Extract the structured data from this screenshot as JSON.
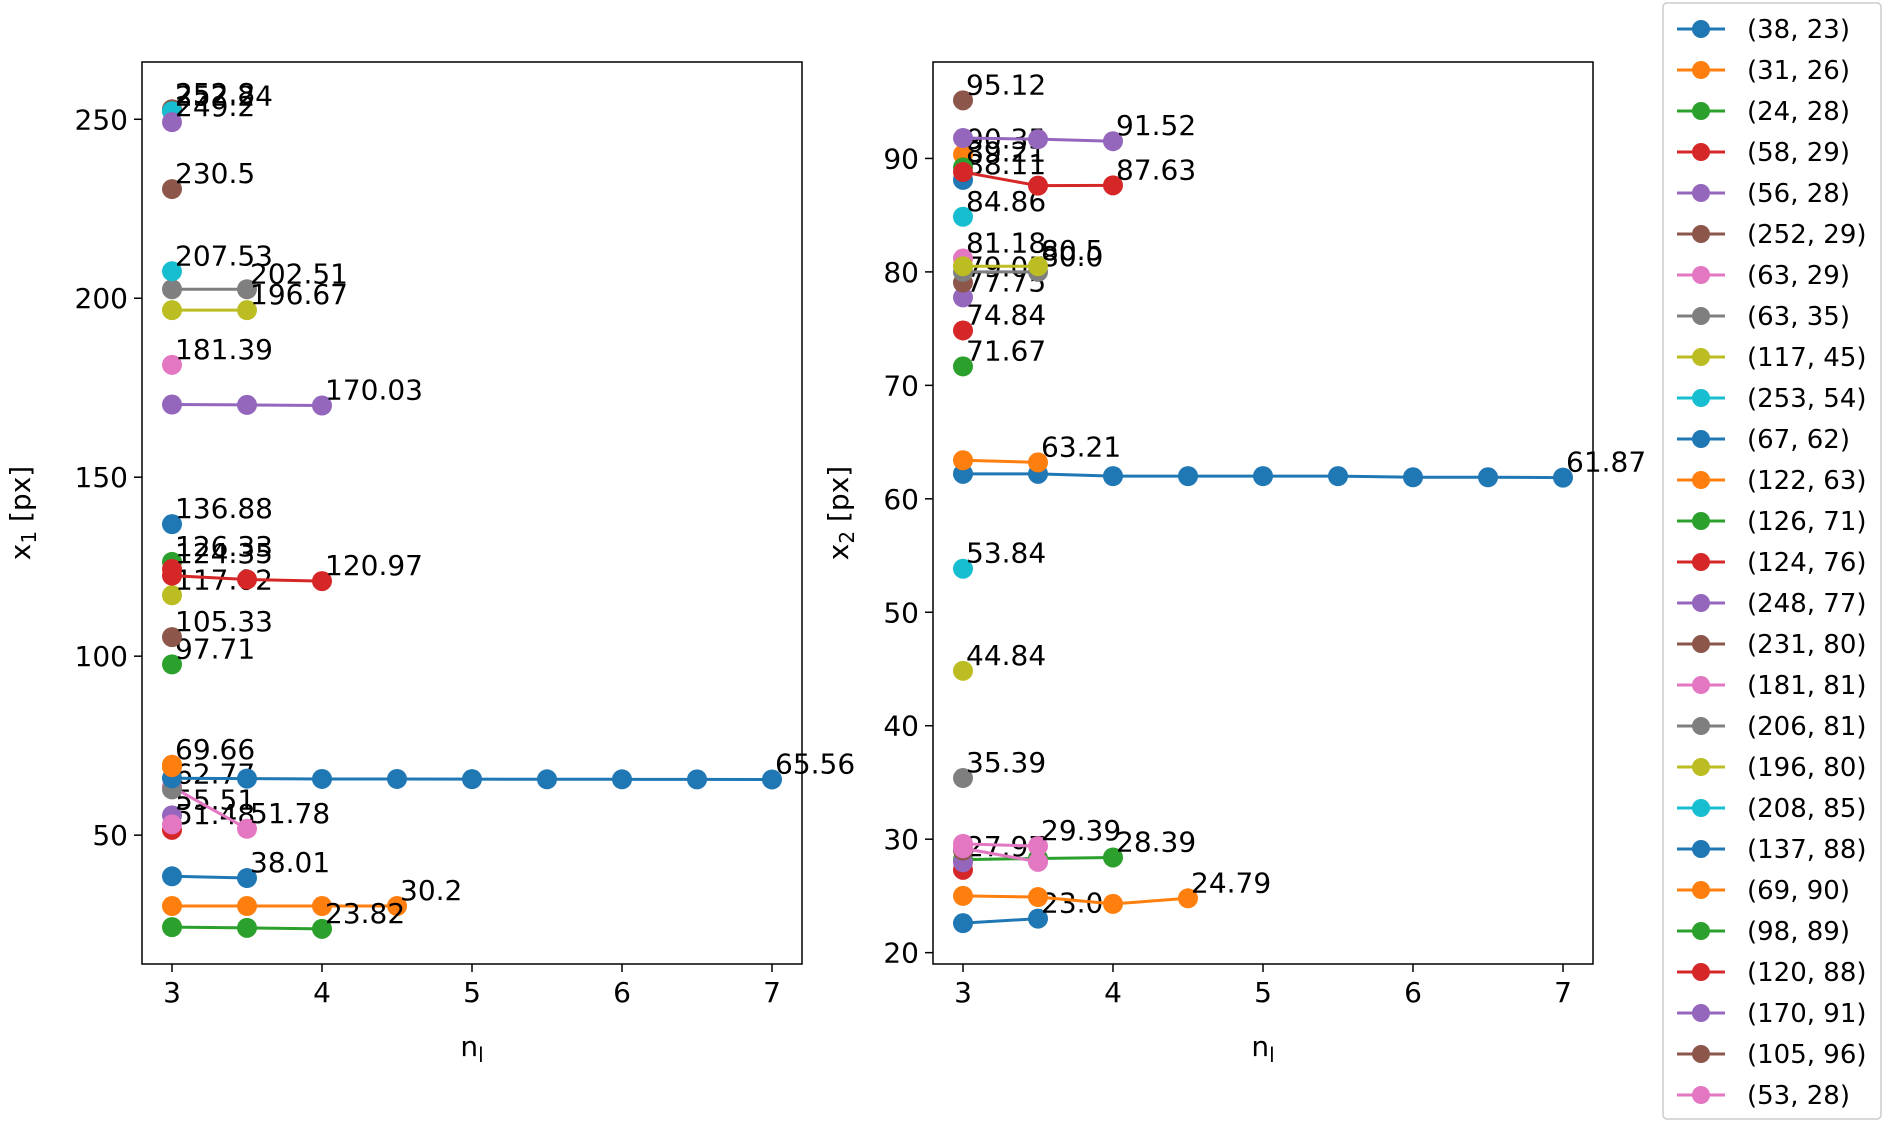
{
  "chart_data": [
    {
      "type": "line",
      "xlabel": "n",
      "xlabel_sub": "l",
      "ylabel": "x",
      "ylabel_sub": "1",
      "ylabel_unit": " [px]",
      "xlim": [
        2.8,
        7.2
      ],
      "ylim": [
        14.0,
        266.0
      ],
      "xticks": [
        3,
        4,
        5,
        6,
        7
      ],
      "yticks": [
        50,
        100,
        150,
        200,
        250
      ],
      "series": [
        {
          "name": "(38, 23)",
          "x": [
            3.0,
            3.5
          ],
          "y": [
            38.5,
            38.01
          ],
          "end_label": "38.01"
        },
        {
          "name": "(31, 26)",
          "x": [
            3.0,
            3.5,
            4.0,
            4.5
          ],
          "y": [
            30.2,
            30.2,
            30.2,
            30.2
          ],
          "end_label": "30.2"
        },
        {
          "name": "(24, 28)",
          "x": [
            3.0,
            3.5,
            4.0
          ],
          "y": [
            24.3,
            24.1,
            23.82
          ],
          "end_label": "23.82"
        },
        {
          "name": "(58, 29)",
          "x": [
            3.0
          ],
          "y": [
            51.48
          ],
          "end_label": "51.48"
        },
        {
          "name": "(56, 28)",
          "x": [
            3.0
          ],
          "y": [
            55.51
          ],
          "end_label": "55.51"
        },
        {
          "name": "(252, 29)",
          "x": [
            3.0
          ],
          "y": [
            252.8
          ],
          "end_label": "252.8"
        },
        {
          "name": "(63, 29)",
          "x": [
            3.0,
            3.5
          ],
          "y": [
            63.5,
            51.78
          ],
          "end_label": "51.78"
        },
        {
          "name": "(63, 35)",
          "x": [
            3.0
          ],
          "y": [
            62.77
          ],
          "end_label": "62.77"
        },
        {
          "name": "(117, 45)",
          "x": [
            3.0
          ],
          "y": [
            117.02
          ],
          "end_label": "117.02"
        },
        {
          "name": "(253, 54)",
          "x": [
            3.0
          ],
          "y": [
            252.24
          ],
          "end_label": "252.24"
        },
        {
          "name": "(67, 62)",
          "x": [
            3.0,
            3.5,
            4.0,
            4.5,
            5.0,
            5.5,
            6.0,
            6.5,
            7.0
          ],
          "y": [
            65.9,
            65.8,
            65.7,
            65.7,
            65.65,
            65.6,
            65.6,
            65.58,
            65.56
          ],
          "end_label": "65.56"
        },
        {
          "name": "(122, 63)",
          "x": [
            3.0
          ],
          "y": [
            69.66
          ],
          "end_label": "69.66"
        },
        {
          "name": "(126, 71)",
          "x": [
            3.0
          ],
          "y": [
            126.33
          ],
          "end_label": "126.33"
        },
        {
          "name": "(124, 76)",
          "x": [
            3.0,
            3.5,
            4.0
          ],
          "y": [
            122.5,
            121.43,
            120.97
          ],
          "end_label": "120.97"
        },
        {
          "name": "(248, 77)",
          "x": [
            3.0
          ],
          "y": [
            249.2
          ],
          "end_label": "249.2"
        },
        {
          "name": "(231, 80)",
          "x": [
            3.0
          ],
          "y": [
            230.5
          ],
          "end_label": "230.5"
        },
        {
          "name": "(181, 81)",
          "x": [
            3.0
          ],
          "y": [
            181.39
          ],
          "end_label": "181.39"
        },
        {
          "name": "(206, 81)",
          "x": [
            3.0,
            3.5
          ],
          "y": [
            202.51,
            202.51
          ],
          "end_label": "202.51"
        },
        {
          "name": "(196, 80)",
          "x": [
            3.0,
            3.5
          ],
          "y": [
            196.67,
            196.67
          ],
          "end_label": "196.67"
        },
        {
          "name": "(208, 85)",
          "x": [
            3.0
          ],
          "y": [
            207.53
          ],
          "end_label": "207.53"
        },
        {
          "name": "(137, 88)",
          "x": [
            3.0
          ],
          "y": [
            136.88
          ],
          "end_label": "136.88"
        },
        {
          "name": "(69, 90)",
          "x": [
            3.0
          ],
          "y": [
            69.0
          ],
          "end_label": ""
        },
        {
          "name": "(98, 89)",
          "x": [
            3.0
          ],
          "y": [
            97.71
          ],
          "end_label": "97.71"
        },
        {
          "name": "(120, 88)",
          "x": [
            3.0
          ],
          "y": [
            124.35
          ],
          "end_label": "124.35"
        },
        {
          "name": "(170, 91)",
          "x": [
            3.0,
            3.5,
            4.0
          ],
          "y": [
            170.3,
            170.2,
            170.03
          ],
          "end_label": "170.03"
        },
        {
          "name": "(105, 96)",
          "x": [
            3.0
          ],
          "y": [
            105.33
          ],
          "end_label": "105.33"
        },
        {
          "name": "(53, 28)",
          "x": [
            3.0
          ],
          "y": [
            53.0
          ],
          "end_label": ""
        }
      ]
    },
    {
      "type": "line",
      "xlabel": "n",
      "xlabel_sub": "l",
      "ylabel": "x",
      "ylabel_sub": "2",
      "ylabel_unit": " [px]",
      "xlim": [
        2.8,
        7.2
      ],
      "ylim": [
        19.0,
        98.5
      ],
      "xticks": [
        3,
        4,
        5,
        6,
        7
      ],
      "yticks": [
        20,
        30,
        40,
        50,
        60,
        70,
        80,
        90
      ],
      "series": [
        {
          "name": "(38, 23)",
          "x": [
            3.0,
            3.5
          ],
          "y": [
            22.6,
            23.0
          ],
          "end_label": "23.0"
        },
        {
          "name": "(31, 26)",
          "x": [
            3.0,
            3.5,
            4.0,
            4.5
          ],
          "y": [
            25.0,
            24.9,
            24.3,
            24.79
          ],
          "end_label": "24.79"
        },
        {
          "name": "(24, 28)",
          "x": [
            3.0,
            3.5,
            4.0
          ],
          "y": [
            28.2,
            28.3,
            28.39
          ],
          "end_label": "28.39"
        },
        {
          "name": "(58, 29)",
          "x": [
            3.0
          ],
          "y": [
            27.3
          ],
          "end_label": ""
        },
        {
          "name": "(56, 28)",
          "x": [
            3.0
          ],
          "y": [
            27.97
          ],
          "end_label": "27.97"
        },
        {
          "name": "(252, 29)",
          "x": [
            3.0
          ],
          "y": [
            29.0
          ],
          "end_label": ""
        },
        {
          "name": "(63, 29)",
          "x": [
            3.0,
            3.5
          ],
          "y": [
            29.59,
            29.39
          ],
          "end_label": "29.39"
        },
        {
          "name": "(63, 35)",
          "x": [
            3.0
          ],
          "y": [
            35.39
          ],
          "end_label": "35.39"
        },
        {
          "name": "(117, 45)",
          "x": [
            3.0
          ],
          "y": [
            44.84
          ],
          "end_label": "44.84"
        },
        {
          "name": "(253, 54)",
          "x": [
            3.0
          ],
          "y": [
            53.84
          ],
          "end_label": "53.84"
        },
        {
          "name": "(67, 62)",
          "x": [
            3.0,
            3.5,
            4.0,
            4.5,
            5.0,
            5.5,
            6.0,
            6.5,
            7.0
          ],
          "y": [
            62.2,
            62.2,
            62.0,
            62.0,
            62.0,
            62.0,
            61.9,
            61.9,
            61.87
          ],
          "end_label": "61.87"
        },
        {
          "name": "(122, 63)",
          "x": [
            3.0,
            3.5
          ],
          "y": [
            63.4,
            63.21
          ],
          "end_label": "63.21"
        },
        {
          "name": "(126, 71)",
          "x": [
            3.0
          ],
          "y": [
            71.67
          ],
          "end_label": "71.67"
        },
        {
          "name": "(124, 76)",
          "x": [
            3.0
          ],
          "y": [
            74.84
          ],
          "end_label": "74.84"
        },
        {
          "name": "(248, 77)",
          "x": [
            3.0
          ],
          "y": [
            77.75
          ],
          "end_label": "77.75"
        },
        {
          "name": "(231, 80)",
          "x": [
            3.0
          ],
          "y": [
            79.05
          ],
          "end_label": "79.05"
        },
        {
          "name": "(181, 81)",
          "x": [
            3.0
          ],
          "y": [
            81.18
          ],
          "end_label": "81.18"
        },
        {
          "name": "(206, 81)",
          "x": [
            3.0,
            3.5
          ],
          "y": [
            80.0,
            80.0
          ],
          "end_label": "80.0"
        },
        {
          "name": "(196, 80)",
          "x": [
            3.0,
            3.5
          ],
          "y": [
            80.5,
            80.5
          ],
          "end_label": "80.5"
        },
        {
          "name": "(208, 85)",
          "x": [
            3.0
          ],
          "y": [
            84.86
          ],
          "end_label": "84.86"
        },
        {
          "name": "(137, 88)",
          "x": [
            3.0
          ],
          "y": [
            88.11
          ],
          "end_label": "88.11"
        },
        {
          "name": "(69, 90)",
          "x": [
            3.0
          ],
          "y": [
            90.35
          ],
          "end_label": "90.35"
        },
        {
          "name": "(98, 89)",
          "x": [
            3.0
          ],
          "y": [
            89.21
          ],
          "end_label": "89.21"
        },
        {
          "name": "(120, 88)",
          "x": [
            3.0,
            3.5,
            4.0
          ],
          "y": [
            88.8,
            87.6,
            87.63
          ],
          "end_label": "87.63"
        },
        {
          "name": "(170, 91)",
          "x": [
            3.0,
            3.5,
            4.0
          ],
          "y": [
            91.8,
            91.7,
            91.52
          ],
          "end_label": "91.52"
        },
        {
          "name": "(105, 96)",
          "x": [
            3.0
          ],
          "y": [
            95.12
          ],
          "end_label": "95.12"
        },
        {
          "name": "(53, 28)",
          "x": [
            3.0,
            3.5
          ],
          "y": [
            29.2,
            28.0
          ],
          "end_label": ""
        }
      ]
    }
  ],
  "legend": {
    "location": "right",
    "entries": [
      "(38, 23)",
      "(31, 26)",
      "(24, 28)",
      "(58, 29)",
      "(56, 28)",
      "(252, 29)",
      "(63, 29)",
      "(63, 35)",
      "(117, 45)",
      "(253, 54)",
      "(67, 62)",
      "(122, 63)",
      "(126, 71)",
      "(124, 76)",
      "(248, 77)",
      "(231, 80)",
      "(181, 81)",
      "(206, 81)",
      "(196, 80)",
      "(208, 85)",
      "(137, 88)",
      "(69, 90)",
      "(98, 89)",
      "(120, 88)",
      "(170, 91)",
      "(105, 96)",
      "(53, 28)"
    ]
  },
  "colors": [
    "#1f77b4",
    "#ff7f0e",
    "#2ca02c",
    "#d62728",
    "#9467bd",
    "#8c564b",
    "#e377c2",
    "#7f7f7f",
    "#bcbd22",
    "#17becf"
  ]
}
